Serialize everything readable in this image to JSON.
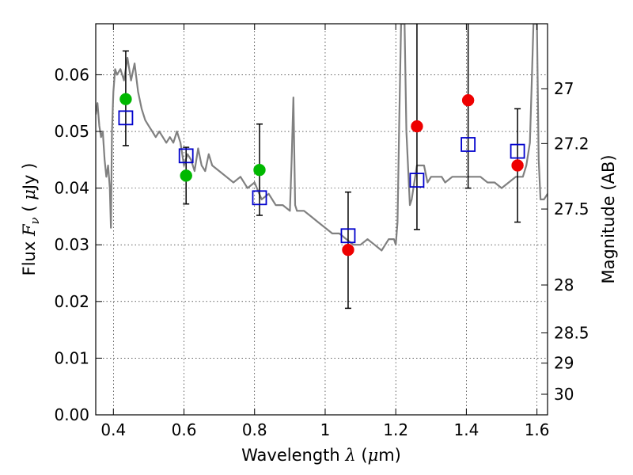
{
  "chart_data": {
    "type": "scatter",
    "xlabel": {
      "prefix": "Wavelength  ",
      "symbol": "λ",
      "suffix": " (",
      "unit_symbol": "μ",
      "unit": "m)"
    },
    "ylabel": {
      "prefix": "Flux  ",
      "symbol": "F",
      "subscript": "ν",
      "mid": "  ( ",
      "unit_symbol": "μ",
      "unit": "Jy )"
    },
    "y2label": "Magnitude (AB)",
    "xlim": [
      0.35,
      1.63
    ],
    "ylim": [
      0.0,
      0.069
    ],
    "grid": true,
    "x_ticks": [
      {
        "value": 0.4,
        "label": "0.4"
      },
      {
        "value": 0.6,
        "label": "0.6"
      },
      {
        "value": 0.8,
        "label": "0.8"
      },
      {
        "value": 1.0,
        "label": "1"
      },
      {
        "value": 1.2,
        "label": "1.2"
      },
      {
        "value": 1.4,
        "label": "1.4"
      },
      {
        "value": 1.6,
        "label": "1.6"
      }
    ],
    "y_ticks": [
      {
        "value": 0.0,
        "label": "0.00"
      },
      {
        "value": 0.01,
        "label": "0.01"
      },
      {
        "value": 0.02,
        "label": "0.02"
      },
      {
        "value": 0.03,
        "label": "0.03"
      },
      {
        "value": 0.04,
        "label": "0.04"
      },
      {
        "value": 0.05,
        "label": "0.05"
      },
      {
        "value": 0.06,
        "label": "0.06"
      }
    ],
    "y2_ticks": [
      {
        "value": 27.0,
        "label": "27"
      },
      {
        "value": 27.2,
        "label": "27.2"
      },
      {
        "value": 27.5,
        "label": "27.5"
      },
      {
        "value": 28.0,
        "label": "28"
      },
      {
        "value": 28.5,
        "label": "28.5"
      },
      {
        "value": 29.0,
        "label": "29"
      },
      {
        "value": 30.0,
        "label": "30"
      }
    ],
    "model_spectrum": {
      "name": "",
      "color": "#808080",
      "x": [
        0.35,
        0.355,
        0.36,
        0.365,
        0.37,
        0.375,
        0.38,
        0.385,
        0.39,
        0.393,
        0.396,
        0.4,
        0.405,
        0.41,
        0.42,
        0.43,
        0.44,
        0.45,
        0.46,
        0.47,
        0.48,
        0.49,
        0.5,
        0.51,
        0.52,
        0.53,
        0.54,
        0.55,
        0.56,
        0.57,
        0.58,
        0.59,
        0.6,
        0.61,
        0.62,
        0.63,
        0.64,
        0.65,
        0.66,
        0.67,
        0.68,
        0.7,
        0.72,
        0.74,
        0.76,
        0.78,
        0.8,
        0.82,
        0.84,
        0.86,
        0.88,
        0.9,
        0.905,
        0.91,
        0.915,
        0.92,
        0.94,
        0.96,
        0.98,
        1.0,
        1.02,
        1.04,
        1.06,
        1.08,
        1.1,
        1.12,
        1.14,
        1.16,
        1.18,
        1.195,
        1.2,
        1.205,
        1.21,
        1.215,
        1.22,
        1.225,
        1.23,
        1.24,
        1.245,
        1.25,
        1.26,
        1.27,
        1.28,
        1.29,
        1.3,
        1.31,
        1.32,
        1.33,
        1.34,
        1.36,
        1.38,
        1.4,
        1.42,
        1.44,
        1.46,
        1.48,
        1.5,
        1.52,
        1.54,
        1.56,
        1.57,
        1.58,
        1.585,
        1.59,
        1.595,
        1.6,
        1.605,
        1.61,
        1.62,
        1.63
      ],
      "y": [
        0.053,
        0.055,
        0.051,
        0.049,
        0.05,
        0.045,
        0.042,
        0.044,
        0.04,
        0.033,
        0.05,
        0.057,
        0.061,
        0.06,
        0.061,
        0.059,
        0.063,
        0.059,
        0.062,
        0.057,
        0.054,
        0.052,
        0.051,
        0.05,
        0.049,
        0.05,
        0.049,
        0.048,
        0.049,
        0.048,
        0.05,
        0.048,
        0.044,
        0.046,
        0.045,
        0.043,
        0.047,
        0.044,
        0.043,
        0.046,
        0.044,
        0.043,
        0.042,
        0.041,
        0.042,
        0.04,
        0.041,
        0.038,
        0.039,
        0.037,
        0.037,
        0.036,
        0.045,
        0.056,
        0.037,
        0.036,
        0.036,
        0.035,
        0.034,
        0.033,
        0.032,
        0.032,
        0.031,
        0.03,
        0.03,
        0.031,
        0.03,
        0.029,
        0.031,
        0.031,
        0.03,
        0.034,
        0.052,
        0.069,
        0.069,
        0.069,
        0.05,
        0.037,
        0.038,
        0.04,
        0.044,
        0.044,
        0.044,
        0.041,
        0.042,
        0.042,
        0.042,
        0.042,
        0.041,
        0.042,
        0.042,
        0.042,
        0.042,
        0.042,
        0.041,
        0.041,
        0.04,
        0.041,
        0.042,
        0.042,
        0.044,
        0.048,
        0.058,
        0.069,
        0.069,
        0.069,
        0.045,
        0.038,
        0.038,
        0.039
      ]
    },
    "error_bars": {
      "color": "#000000",
      "items": [
        {
          "x": 0.435,
          "low": 0.0475,
          "high": 0.0642
        },
        {
          "x": 0.606,
          "low": 0.0372,
          "high": 0.0472
        },
        {
          "x": 0.814,
          "low": 0.0352,
          "high": 0.0513
        },
        {
          "x": 1.065,
          "low": 0.0188,
          "high": 0.0393
        },
        {
          "x": 1.26,
          "low": 0.0327,
          "high": 0.069
        },
        {
          "x": 1.405,
          "low": 0.04,
          "high": 0.069
        },
        {
          "x": 1.545,
          "low": 0.034,
          "high": 0.054
        }
      ]
    },
    "series": [
      {
        "name": "",
        "marker": "circle",
        "color": "#00b800",
        "x": [
          0.435,
          0.606,
          0.814
        ],
        "y": [
          0.0557,
          0.0422,
          0.0432
        ]
      },
      {
        "name": "",
        "marker": "circle",
        "color": "#ee0000",
        "x": [
          1.065,
          1.26,
          1.405,
          1.545
        ],
        "y": [
          0.0291,
          0.0509,
          0.0555,
          0.044
        ]
      },
      {
        "name": "",
        "marker": "open-square",
        "color": "#0000cc",
        "x": [
          0.435,
          0.606,
          0.814,
          1.065,
          1.26,
          1.405,
          1.545
        ],
        "y": [
          0.0524,
          0.0457,
          0.0383,
          0.0316,
          0.0414,
          0.0477,
          0.0465
        ]
      }
    ]
  }
}
